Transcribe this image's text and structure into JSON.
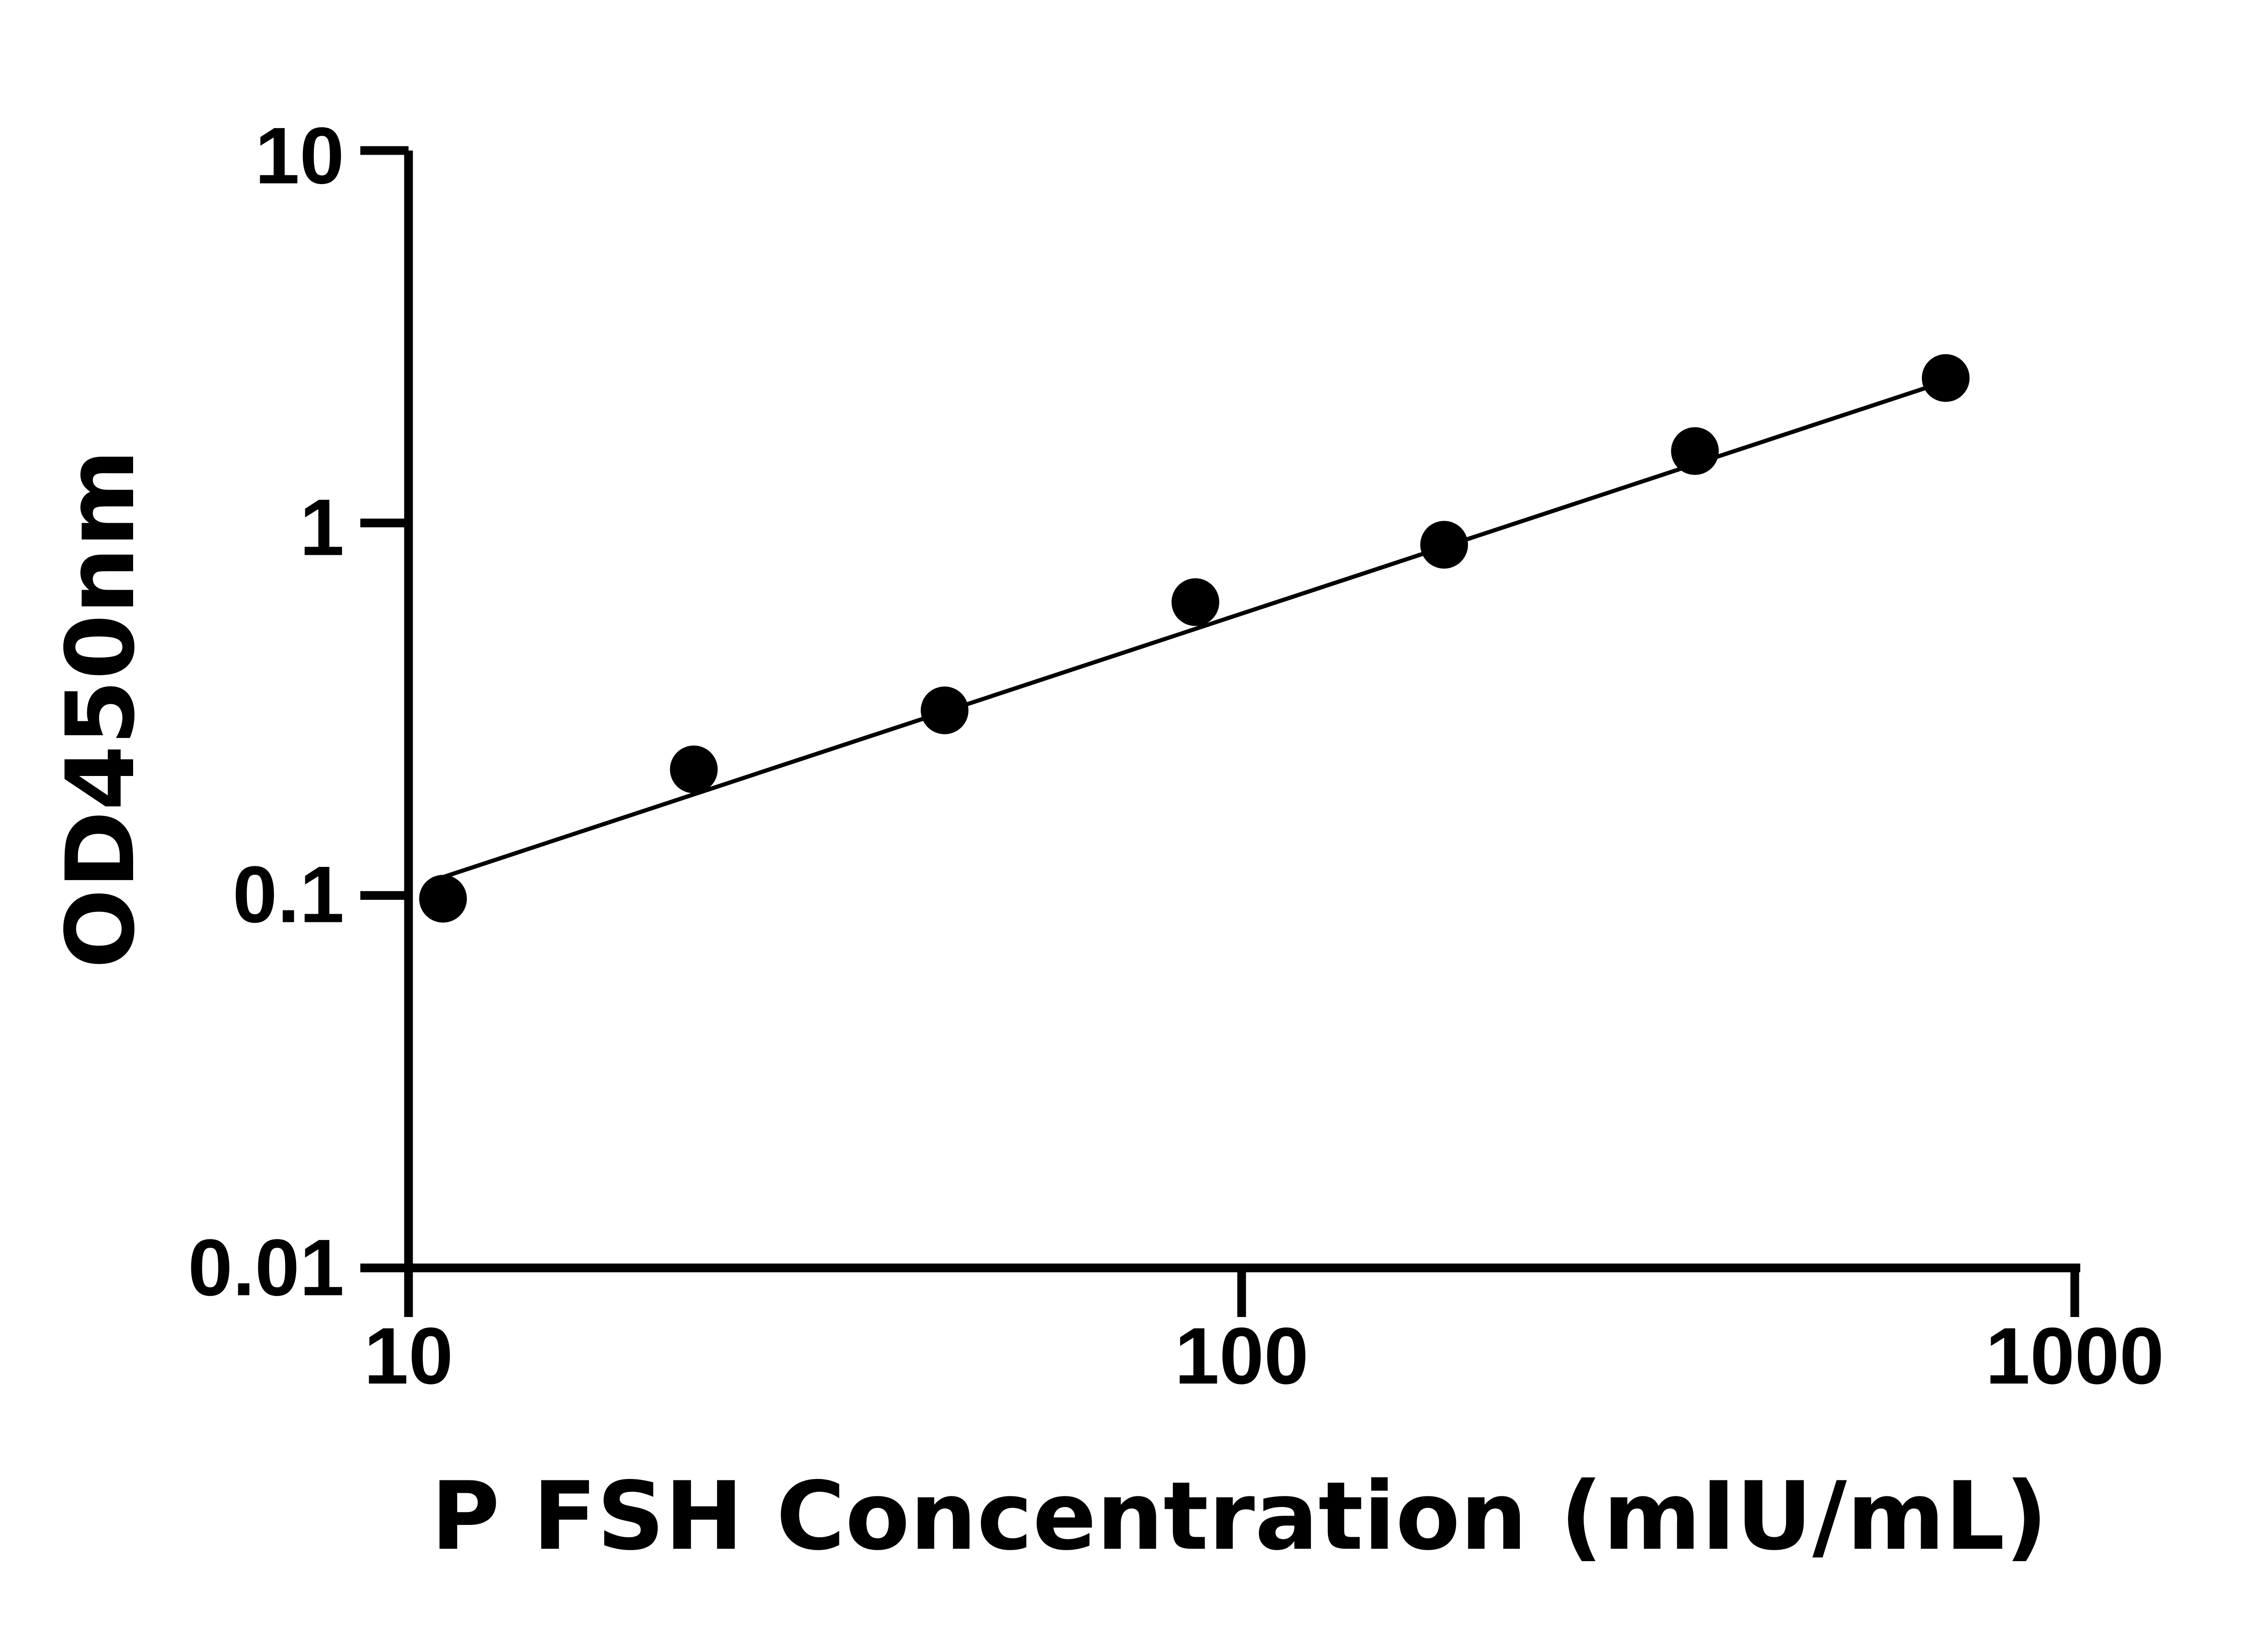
{
  "chart_data": {
    "type": "scatter",
    "xlabel": "P FSH Concentration (mIU/mL)",
    "ylabel": "OD450nm",
    "x_scale": "log",
    "y_scale": "log",
    "xlim": [
      10,
      1000
    ],
    "ylim": [
      0.01,
      10
    ],
    "x_ticks": [
      "10",
      "100",
      "1000"
    ],
    "y_ticks": [
      "0.01",
      "0.1",
      "1",
      "10"
    ],
    "grid": false,
    "legend": "none",
    "colors": {
      "points": "#000000",
      "line": "#000000",
      "axes": "#000000"
    },
    "series": [
      {
        "x": [
          11,
          22,
          44,
          88,
          175,
          350,
          700
        ],
        "y": [
          0.098,
          0.218,
          0.314,
          0.613,
          0.874,
          1.56,
          2.45
        ]
      }
    ],
    "fit_line": {
      "x": [
        11,
        700
      ],
      "y": [
        0.112,
        2.4
      ]
    }
  }
}
